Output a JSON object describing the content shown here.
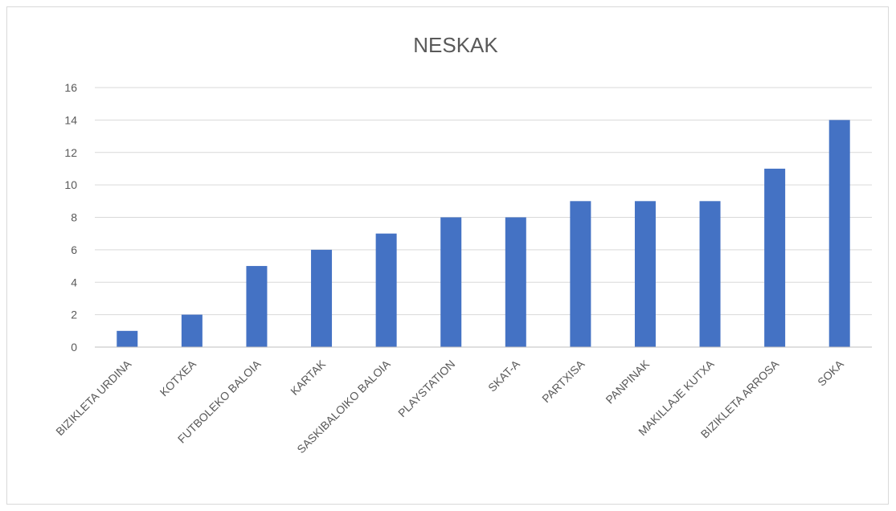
{
  "chart_data": {
    "type": "bar",
    "title": "NESKAK",
    "categories": [
      "BIZIKLETA URDINA",
      "KOTXEA",
      "FUTBOLEKO BALOIA",
      "KARTAK",
      "SASKIBALOIKO BALOIA",
      "PLAYSTATION",
      "SKAT-A",
      "PARTXISA",
      "PANPINAK",
      "MAKILLAJE KUTXA",
      "BIZIKLETA ARROSA",
      "SOKA"
    ],
    "values": [
      1,
      2,
      5,
      6,
      7,
      8,
      8,
      9,
      9,
      9,
      11,
      14
    ],
    "ylim": [
      0,
      16
    ],
    "yticks": [
      0,
      2,
      4,
      6,
      8,
      10,
      12,
      14,
      16
    ],
    "grid": true,
    "bar_color": "#4472c4"
  }
}
